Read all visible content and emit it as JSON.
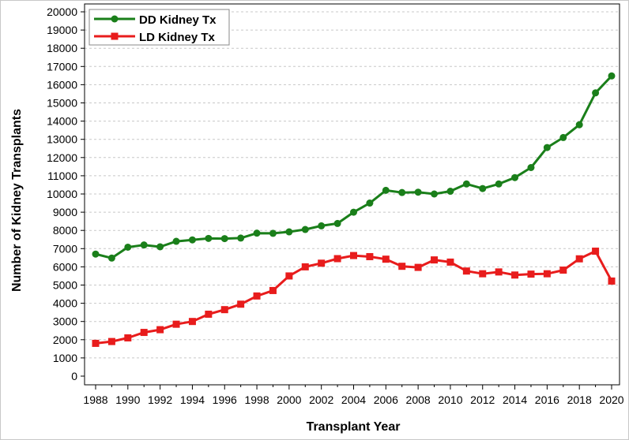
{
  "chart_data": {
    "type": "line",
    "title": "",
    "xlabel": "Transplant Year",
    "ylabel": "Number of Kidney Transplants",
    "xlim": [
      1988,
      2020
    ],
    "ylim": [
      0,
      20000
    ],
    "x_ticks": [
      "1988",
      "1990",
      "1992",
      "1994",
      "1996",
      "1998",
      "2000",
      "2002",
      "2004",
      "2006",
      "2008",
      "2010",
      "2012",
      "2014",
      "2016",
      "2018",
      "2020"
    ],
    "y_ticks": [
      "0",
      "1000",
      "2000",
      "3000",
      "4000",
      "5000",
      "6000",
      "7000",
      "8000",
      "9000",
      "10000",
      "11000",
      "12000",
      "13000",
      "14000",
      "15000",
      "16000",
      "17000",
      "18000",
      "19000",
      "20000"
    ],
    "grid": "horizontal dashed",
    "legend_position": "top-left",
    "x": [
      1988,
      1989,
      1990,
      1991,
      1992,
      1993,
      1994,
      1995,
      1996,
      1997,
      1998,
      1999,
      2000,
      2001,
      2002,
      2003,
      2004,
      2005,
      2006,
      2007,
      2008,
      2009,
      2010,
      2011,
      2012,
      2013,
      2014,
      2015,
      2016,
      2017,
      2018,
      2019,
      2020
    ],
    "series": [
      {
        "name": "DD Kidney Tx",
        "color": "#1a7f1a",
        "marker": "circle",
        "values": [
          6700,
          6480,
          7080,
          7200,
          7100,
          7400,
          7480,
          7560,
          7550,
          7580,
          7850,
          7840,
          7920,
          8050,
          8250,
          8380,
          9000,
          9500,
          10200,
          10080,
          10100,
          10000,
          10150,
          10550,
          10300,
          10550,
          10900,
          11450,
          12550,
          13100,
          13800,
          15550,
          16480
        ]
      },
      {
        "name": "LD Kidney Tx",
        "color": "#e81c1c",
        "marker": "square",
        "values": [
          1800,
          1900,
          2100,
          2400,
          2550,
          2850,
          3000,
          3400,
          3650,
          3950,
          4400,
          4700,
          5500,
          6000,
          6200,
          6450,
          6620,
          6560,
          6420,
          6030,
          5970,
          6380,
          6260,
          5770,
          5620,
          5720,
          5550,
          5600,
          5620,
          5820,
          6440,
          6860,
          5220
        ]
      }
    ]
  }
}
